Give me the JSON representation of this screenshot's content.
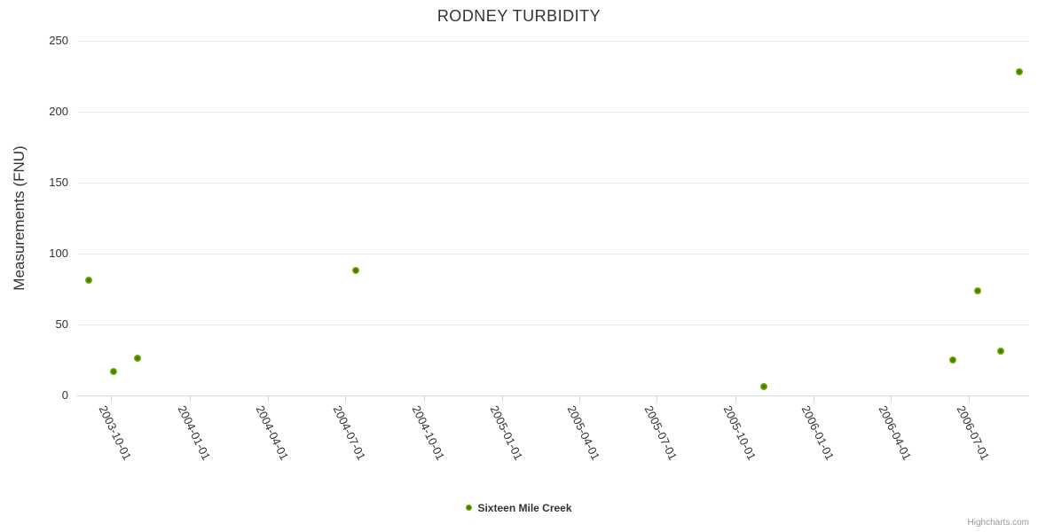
{
  "title": "RODNEY TURBIDITY",
  "credits_label": "Highcharts.com",
  "legend": {
    "series_label": "Sixteen Mile Creek"
  },
  "colors": {
    "series": "#77b300",
    "series_center": "#447c00",
    "grid": "#e6e6e6",
    "axis_line": "#ccd6eb",
    "text": "#333333",
    "credits": "#999999"
  },
  "chart_data": {
    "type": "scatter",
    "title": "RODNEY TURBIDITY",
    "xlabel": "",
    "ylabel": "Measurements (FNU)",
    "ylim": [
      0,
      250
    ],
    "y_ticks": [
      0,
      50,
      100,
      150,
      200,
      250
    ],
    "x_range": [
      "2003-08-22",
      "2006-09-10"
    ],
    "x_ticks": [
      "2003-10-01",
      "2004-01-01",
      "2004-04-01",
      "2004-07-01",
      "2004-10-01",
      "2005-01-01",
      "2005-04-01",
      "2005-07-01",
      "2005-10-01",
      "2006-01-01",
      "2006-04-01",
      "2006-07-01"
    ],
    "grid": "horizontal-only",
    "legend_position": "bottom-center",
    "series": [
      {
        "name": "Sixteen Mile Creek",
        "color": "#77b300",
        "points": [
          {
            "date": "2003-09-04",
            "value": 81
          },
          {
            "date": "2003-10-04",
            "value": 17
          },
          {
            "date": "2003-11-01",
            "value": 26
          },
          {
            "date": "2004-07-13",
            "value": 88
          },
          {
            "date": "2005-11-03",
            "value": 6
          },
          {
            "date": "2006-06-13",
            "value": 25
          },
          {
            "date": "2006-07-12",
            "value": 74
          },
          {
            "date": "2006-08-08",
            "value": 31
          },
          {
            "date": "2006-08-30",
            "value": 228
          }
        ]
      }
    ]
  }
}
